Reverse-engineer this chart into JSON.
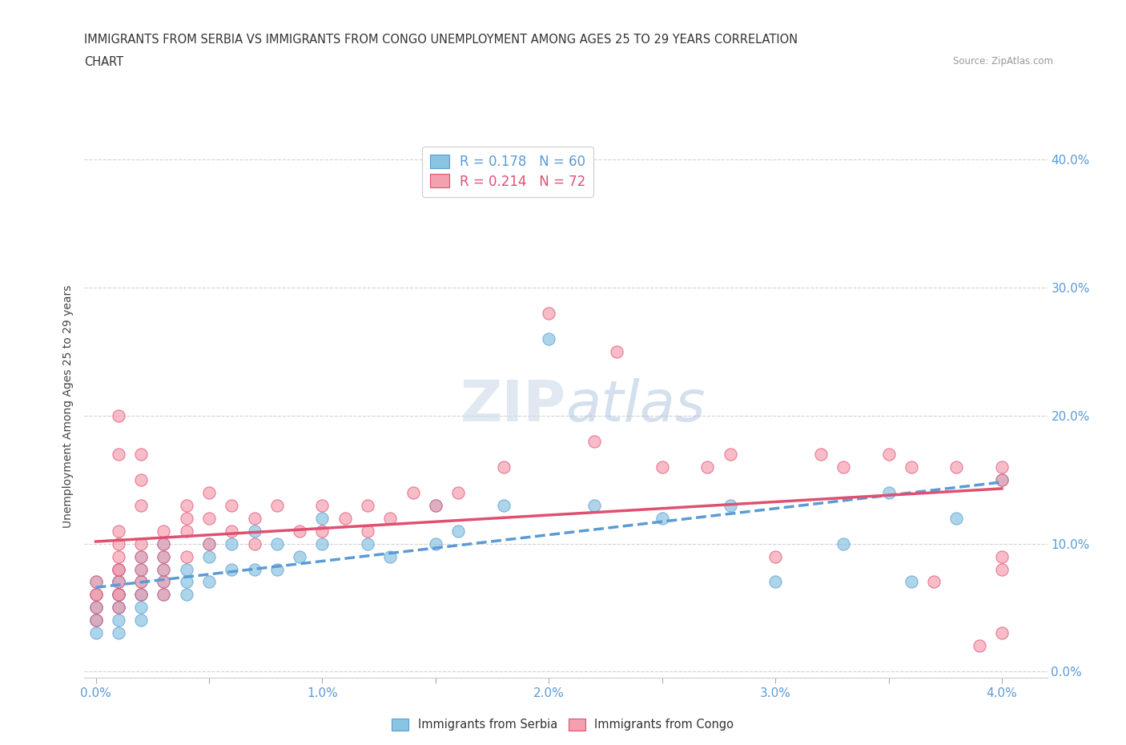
{
  "title_line1": "IMMIGRANTS FROM SERBIA VS IMMIGRANTS FROM CONGO UNEMPLOYMENT AMONG AGES 25 TO 29 YEARS CORRELATION",
  "title_line2": "CHART",
  "source": "Source: ZipAtlas.com",
  "ylabel": "Unemployment Among Ages 25 to 29 years",
  "r_serbia": 0.178,
  "n_serbia": 60,
  "r_congo": 0.214,
  "n_congo": 72,
  "color_serbia": "#89c4e1",
  "color_congo": "#f4a0b0",
  "color_serbia_line": "#5b9bd5",
  "color_congo_line": "#e05070",
  "xlim": [
    -0.0005,
    0.042
  ],
  "ylim": [
    -0.005,
    0.42
  ],
  "yticks": [
    0.0,
    0.1,
    0.2,
    0.3,
    0.4
  ],
  "serbia_x": [
    0.0,
    0.0,
    0.0,
    0.0,
    0.0,
    0.0,
    0.0,
    0.001,
    0.001,
    0.001,
    0.001,
    0.001,
    0.001,
    0.001,
    0.001,
    0.001,
    0.001,
    0.002,
    0.002,
    0.002,
    0.002,
    0.002,
    0.002,
    0.002,
    0.003,
    0.003,
    0.003,
    0.003,
    0.003,
    0.004,
    0.004,
    0.004,
    0.005,
    0.005,
    0.005,
    0.006,
    0.006,
    0.007,
    0.007,
    0.008,
    0.008,
    0.009,
    0.01,
    0.01,
    0.012,
    0.013,
    0.015,
    0.015,
    0.016,
    0.018,
    0.02,
    0.022,
    0.025,
    0.028,
    0.03,
    0.033,
    0.035,
    0.036,
    0.038,
    0.04
  ],
  "serbia_y": [
    0.07,
    0.05,
    0.06,
    0.04,
    0.05,
    0.03,
    0.04,
    0.08,
    0.06,
    0.07,
    0.05,
    0.04,
    0.06,
    0.05,
    0.03,
    0.07,
    0.06,
    0.09,
    0.07,
    0.06,
    0.08,
    0.05,
    0.04,
    0.06,
    0.1,
    0.08,
    0.06,
    0.07,
    0.09,
    0.07,
    0.08,
    0.06,
    0.09,
    0.1,
    0.07,
    0.1,
    0.08,
    0.11,
    0.08,
    0.1,
    0.08,
    0.09,
    0.12,
    0.1,
    0.1,
    0.09,
    0.13,
    0.1,
    0.11,
    0.13,
    0.26,
    0.13,
    0.12,
    0.13,
    0.07,
    0.1,
    0.14,
    0.07,
    0.12,
    0.15
  ],
  "congo_x": [
    0.0,
    0.0,
    0.0,
    0.0,
    0.0,
    0.001,
    0.001,
    0.001,
    0.001,
    0.001,
    0.001,
    0.001,
    0.001,
    0.001,
    0.001,
    0.001,
    0.002,
    0.002,
    0.002,
    0.002,
    0.002,
    0.002,
    0.002,
    0.002,
    0.003,
    0.003,
    0.003,
    0.003,
    0.003,
    0.003,
    0.004,
    0.004,
    0.004,
    0.004,
    0.005,
    0.005,
    0.005,
    0.006,
    0.006,
    0.007,
    0.007,
    0.008,
    0.009,
    0.01,
    0.01,
    0.011,
    0.012,
    0.012,
    0.013,
    0.014,
    0.015,
    0.016,
    0.018,
    0.02,
    0.022,
    0.023,
    0.025,
    0.027,
    0.028,
    0.03,
    0.032,
    0.033,
    0.035,
    0.036,
    0.037,
    0.038,
    0.039,
    0.04,
    0.04,
    0.04,
    0.04,
    0.04
  ],
  "congo_y": [
    0.07,
    0.05,
    0.06,
    0.04,
    0.06,
    0.2,
    0.17,
    0.1,
    0.08,
    0.06,
    0.07,
    0.05,
    0.08,
    0.06,
    0.09,
    0.11,
    0.17,
    0.15,
    0.13,
    0.09,
    0.07,
    0.08,
    0.06,
    0.1,
    0.11,
    0.09,
    0.07,
    0.08,
    0.06,
    0.1,
    0.13,
    0.11,
    0.12,
    0.09,
    0.14,
    0.12,
    0.1,
    0.13,
    0.11,
    0.12,
    0.1,
    0.13,
    0.11,
    0.13,
    0.11,
    0.12,
    0.13,
    0.11,
    0.12,
    0.14,
    0.13,
    0.14,
    0.16,
    0.28,
    0.18,
    0.25,
    0.16,
    0.16,
    0.17,
    0.09,
    0.17,
    0.16,
    0.17,
    0.16,
    0.07,
    0.16,
    0.02,
    0.03,
    0.09,
    0.16,
    0.08,
    0.15
  ],
  "watermark_zip": "ZIP",
  "watermark_atlas": "atlas",
  "tick_color": "#5b9bd5",
  "grid_color": "#d3d3d3",
  "background_color": "#ffffff"
}
